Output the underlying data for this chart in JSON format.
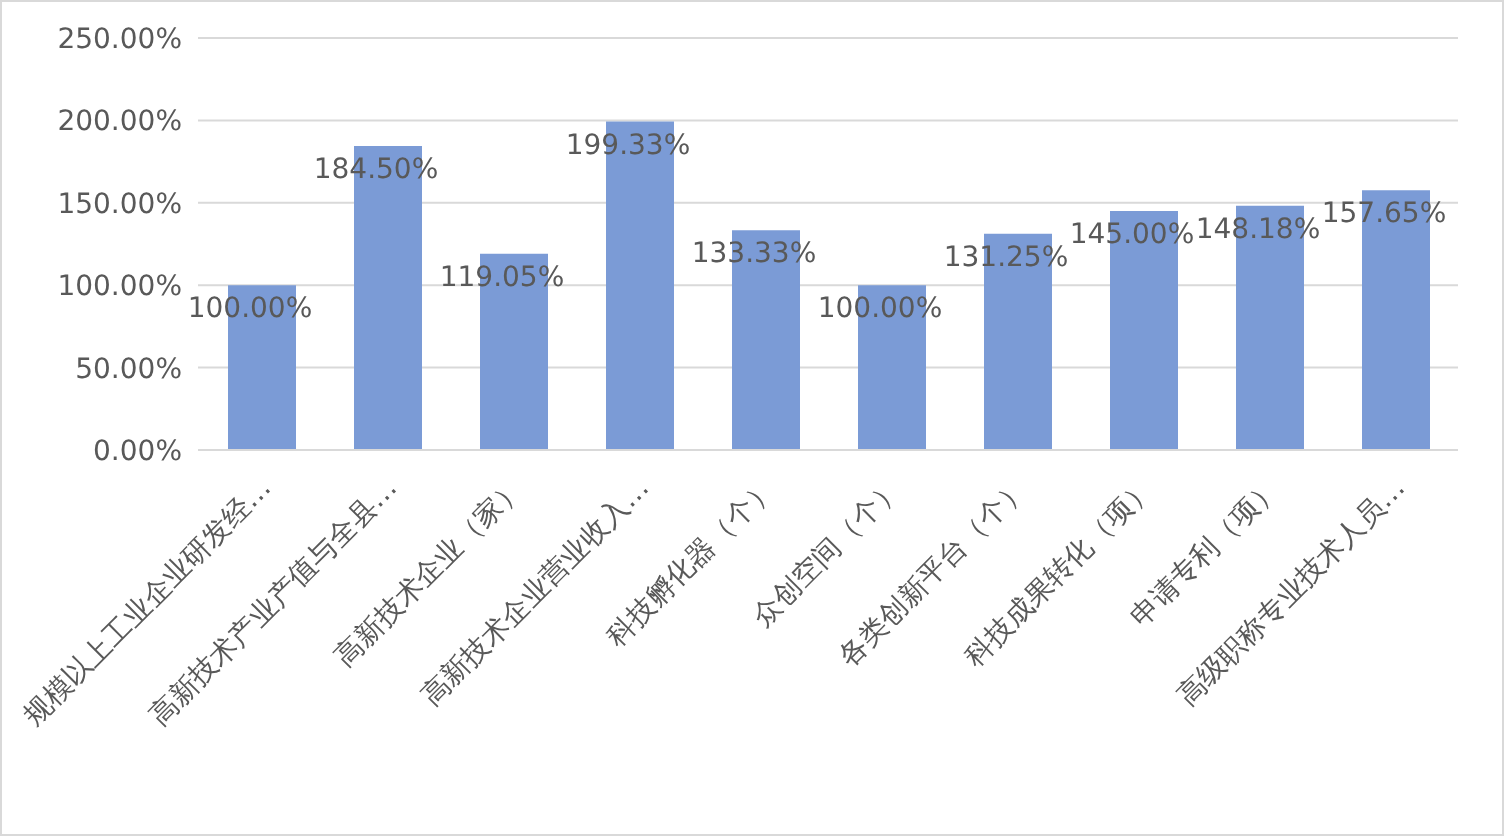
{
  "chart_data": {
    "type": "bar",
    "categories": [
      "规模以上工业企业研发经…",
      "高新技术产业产值与全县…",
      "高新技术企业（家）",
      "高新技术企业营业收入…",
      "科技孵化器（个）",
      "众创空间（个）",
      "各类创新平台（个）",
      "科技成果转化（项）",
      "申请专利（项）",
      "高级职称专业技术人员…"
    ],
    "values": [
      100.0,
      184.5,
      119.05,
      199.33,
      133.33,
      100.0,
      131.25,
      145.0,
      148.18,
      157.65
    ],
    "value_labels": [
      "100.00%",
      "184.50%",
      "119.05%",
      "199.33%",
      "133.33%",
      "100.00%",
      "131.25%",
      "145.00%",
      "148.18%",
      "157.65%"
    ],
    "color": "#7b9bd6",
    "ylim": [
      0,
      250
    ],
    "yticks": [
      {
        "value": 0,
        "label": "0.00%"
      },
      {
        "value": 50,
        "label": "50.00%"
      },
      {
        "value": 100,
        "label": "100.00%"
      },
      {
        "value": 150,
        "label": "150.00%"
      },
      {
        "value": 200,
        "label": "200.00%"
      },
      {
        "value": 250,
        "label": "250.00%"
      }
    ],
    "grid": "y"
  }
}
